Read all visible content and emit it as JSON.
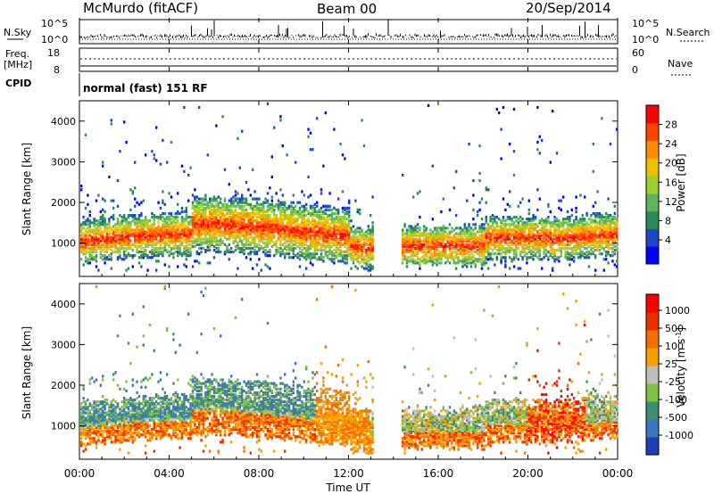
{
  "header": {
    "station": "McMurdo (fitACF)",
    "beam": "Beam 00",
    "date": "20/Sep/2014"
  },
  "top_panels": {
    "nsky_label": "N.Sky",
    "nsearch_label": "N.Search",
    "nsky_ticks": [
      "10^5",
      "10^0"
    ],
    "nsearch_ticks": [
      "10^5",
      "10^0"
    ],
    "freq_label_1": "Freq.",
    "freq_label_2": "[MHz]",
    "freq_ticks": [
      "18",
      "8"
    ],
    "nave_label": "Nave",
    "nave_ticks": [
      "60",
      "0"
    ],
    "cpid_label": "CPID",
    "cpid_text": "normal (fast) 151 RF"
  },
  "chart_data": [
    {
      "type": "heatmap",
      "title": "",
      "ylabel": "Slant Range [km]",
      "xlabel": "",
      "ylim": [
        180,
        4500
      ],
      "yticks": [
        "4000",
        "3000",
        "2000",
        "1000"
      ],
      "colorbar": {
        "label": "Power [dB]",
        "ticks": [
          "28",
          "24",
          "20",
          "16",
          "12",
          "8",
          "4"
        ],
        "colors": [
          "#0000ff",
          "#1e46c8",
          "#2e8b57",
          "#5fb35f",
          "#9acd32",
          "#f0c000",
          "#ff8c00",
          "#ff4500",
          "#ff0000"
        ]
      },
      "x": [
        "00:00",
        "04:00",
        "08:00",
        "12:00",
        "16:00",
        "20:00",
        "00:00"
      ]
    },
    {
      "type": "heatmap",
      "title": "",
      "ylabel": "Slant Range [km]",
      "xlabel": "Time UT",
      "ylim": [
        180,
        4500
      ],
      "yticks": [
        "4000",
        "3000",
        "2000",
        "1000"
      ],
      "colorbar": {
        "label": "Velocity [m s^-1]",
        "ticks": [
          "1000",
          "500",
          "100",
          "25",
          "-25",
          "-100",
          "-500",
          "-1000"
        ],
        "colors": [
          "#1e3fb4",
          "#3a75c4",
          "#3e8e6e",
          "#7fc241",
          "#bdbdbd",
          "#f5a000",
          "#f07000",
          "#e83000",
          "#ff0000"
        ]
      },
      "x": [
        "00:00",
        "04:00",
        "08:00",
        "12:00",
        "16:00",
        "20:00",
        "00:00"
      ]
    }
  ]
}
